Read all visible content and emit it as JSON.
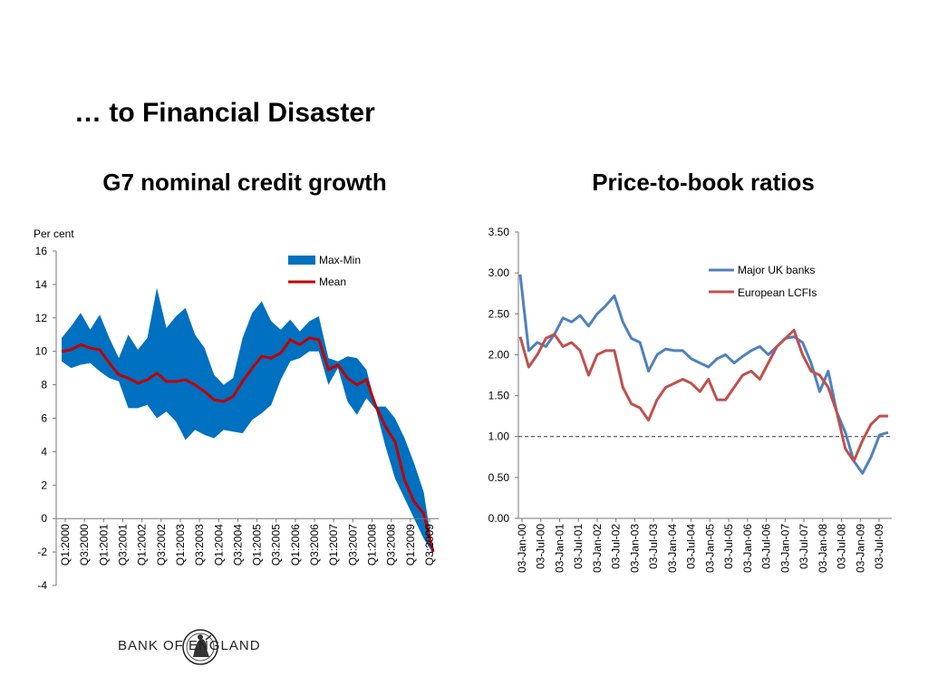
{
  "slide": {
    "title": "… to Financial Disaster",
    "logo_text": "BANK OF ENGLAND"
  },
  "chart_data": [
    {
      "type": "area",
      "title": "G7 nominal credit growth",
      "ylabel": "Per cent",
      "xlabel": "",
      "ylim": [
        -4,
        16
      ],
      "yticks": [
        -4,
        -2,
        0,
        2,
        4,
        6,
        8,
        10,
        12,
        14,
        16
      ],
      "xticklabels": [
        "Q1:2000",
        "Q3:2000",
        "Q1:2001",
        "Q3:2001",
        "Q1:2002",
        "Q3:2002",
        "Q1:2003",
        "Q3:2003",
        "Q1:2004",
        "Q3:2004",
        "Q1:2005",
        "Q3:2005",
        "Q1:2006",
        "Q3:2006",
        "Q1:2007",
        "Q3:2007",
        "Q1:2008",
        "Q3:2008",
        "Q1:2009",
        "Q3:2009"
      ],
      "legend_position": "top-right",
      "colors": {
        "band": "#0070C0",
        "mean": "#C00000"
      },
      "band": {
        "name": "Max-Min",
        "max": [
          10.8,
          11.5,
          12.3,
          11.3,
          12.2,
          10.8,
          9.6,
          11.0,
          10.1,
          10.8,
          13.8,
          11.4,
          12.1,
          12.6,
          11.0,
          10.2,
          8.6,
          8.0,
          8.4,
          10.8,
          12.3,
          13.0,
          11.8,
          11.3,
          11.9,
          11.2,
          11.8,
          12.1,
          9.6,
          9.4,
          9.7,
          9.6,
          8.9,
          6.7,
          6.7,
          6.0,
          4.8,
          3.3,
          1.6,
          -2.0
        ],
        "min": [
          9.4,
          9.0,
          9.2,
          9.3,
          8.8,
          8.4,
          8.2,
          6.6,
          6.6,
          6.8,
          6.0,
          6.4,
          5.8,
          4.7,
          5.3,
          5.0,
          4.8,
          5.3,
          5.2,
          5.1,
          5.9,
          6.3,
          6.8,
          8.3,
          9.4,
          9.6,
          10.0,
          10.0,
          8.0,
          9.0,
          7.0,
          6.2,
          7.2,
          6.5,
          4.3,
          2.4,
          1.2,
          0.0,
          -1.2,
          -2.1
        ]
      },
      "series": [
        {
          "name": "Mean",
          "values": [
            10.0,
            10.1,
            10.4,
            10.2,
            10.1,
            9.3,
            8.6,
            8.4,
            8.1,
            8.3,
            8.7,
            8.2,
            8.2,
            8.3,
            8.0,
            7.6,
            7.1,
            7.0,
            7.3,
            8.2,
            9.0,
            9.7,
            9.6,
            9.9,
            10.7,
            10.4,
            10.8,
            10.7,
            8.9,
            9.2,
            8.4,
            8.0,
            8.3,
            6.7,
            5.5,
            4.6,
            2.3,
            1.0,
            0.3,
            -2.0
          ]
        }
      ]
    },
    {
      "type": "line",
      "title": "Price-to-book ratios",
      "xlabel": "",
      "ylabel": "",
      "ylim": [
        0,
        3.5
      ],
      "yticks": [
        0.0,
        0.5,
        1.0,
        1.5,
        2.0,
        2.5,
        3.0,
        3.5
      ],
      "ytick_labels": [
        "0.00",
        "0.50",
        "1.00",
        "1.50",
        "2.00",
        "2.50",
        "3.00",
        "3.50"
      ],
      "xticklabels": [
        "03-Jan-00",
        "03-Jul-00",
        "03-Jan-01",
        "03-Jul-01",
        "03-Jan-02",
        "03-Jul-02",
        "03-Jan-03",
        "03-Jul-03",
        "03-Jan-04",
        "03-Jul-04",
        "03-Jan-05",
        "03-Jul-05",
        "03-Jan-06",
        "03-Jul-06",
        "03-Jan-07",
        "03-Jul-07",
        "03-Jan-08",
        "03-Jul-08",
        "03-Jan-09",
        "03-Jul-09"
      ],
      "reference_line": 1.0,
      "legend_position": "top-right",
      "colors": {
        "Major UK banks": "#4F81BD",
        "European LCFIs": "#C0504D"
      },
      "series": [
        {
          "name": "Major UK banks",
          "values": [
            2.98,
            2.05,
            2.15,
            2.1,
            2.25,
            2.45,
            2.4,
            2.48,
            2.35,
            2.5,
            2.6,
            2.72,
            2.4,
            2.2,
            2.15,
            1.8,
            2.0,
            2.07,
            2.05,
            2.05,
            1.95,
            1.9,
            1.85,
            1.95,
            2.0,
            1.9,
            1.98,
            2.05,
            2.1,
            2.0,
            2.1,
            2.2,
            2.22,
            2.15,
            1.9,
            1.55,
            1.8,
            1.3,
            1.05,
            0.7,
            0.55,
            0.75,
            1.02,
            1.05
          ]
        },
        {
          "name": "European LCFIs",
          "values": [
            2.22,
            1.85,
            2.0,
            2.2,
            2.25,
            2.1,
            2.15,
            2.05,
            1.75,
            2.0,
            2.05,
            2.05,
            1.6,
            1.4,
            1.35,
            1.2,
            1.45,
            1.6,
            1.65,
            1.7,
            1.65,
            1.55,
            1.7,
            1.45,
            1.45,
            1.6,
            1.75,
            1.8,
            1.7,
            1.9,
            2.1,
            2.2,
            2.3,
            2.0,
            1.8,
            1.75,
            1.6,
            1.3,
            0.85,
            0.7,
            0.95,
            1.15,
            1.25,
            1.25
          ]
        }
      ]
    }
  ]
}
